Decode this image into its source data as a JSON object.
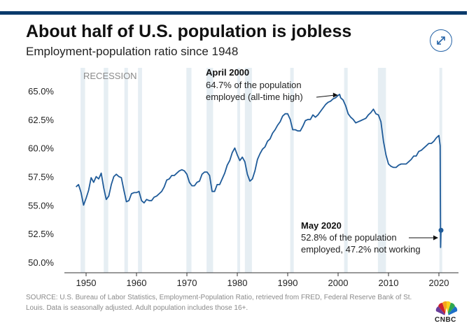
{
  "title": "About half of U.S. population is jobless",
  "subtitle": "Employment-population ratio since 1948",
  "source": "SOURCE: U.S. Bureau of Labor Statistics, Employment-Population Ratio, retrieved from FRED, Federal Reserve Bank of St. Louis. Data is seasonally adjusted. Adult population includes those 16+.",
  "logo": {
    "text": "CNBC",
    "icon": "peacock-icon"
  },
  "expand": {
    "icon": "expand-arrows-icon"
  },
  "colors": {
    "line": "#1f5b99",
    "topbar": "#0b3a6b",
    "recession": "#e6eef3",
    "text": "#222222"
  },
  "chart_data": {
    "type": "line",
    "title": "Employment-population ratio since 1948",
    "xlabel": "",
    "ylabel": "",
    "xlim": [
      1946,
      2023
    ],
    "ylim": [
      50,
      65.5
    ],
    "x_ticks": [
      1950,
      1960,
      1970,
      1980,
      1990,
      2000,
      2010,
      2020
    ],
    "x_tick_labels": [
      "1950",
      "1960",
      "1970",
      "1980",
      "1990",
      "2000",
      "2010",
      "2020"
    ],
    "y_ticks": [
      50,
      52.5,
      55,
      57.5,
      60,
      62.5,
      65
    ],
    "y_tick_labels": [
      "50.0%",
      "52.5%",
      "55.0%",
      "57.5%",
      "60.0%",
      "62.5%",
      "65.0%"
    ],
    "grid": false,
    "recession_label": "RECESSION",
    "recessions": [
      [
        1948.9,
        1949.8
      ],
      [
        1953.5,
        1954.4
      ],
      [
        1957.6,
        1958.3
      ],
      [
        1960.3,
        1961.1
      ],
      [
        1969.9,
        1970.9
      ],
      [
        1973.9,
        1975.2
      ],
      [
        1980.0,
        1980.5
      ],
      [
        1981.5,
        1982.9
      ],
      [
        1990.5,
        1991.2
      ],
      [
        2001.2,
        2001.9
      ],
      [
        2007.9,
        2009.5
      ],
      [
        2020.1,
        2020.4
      ]
    ],
    "series": [
      {
        "name": "Employment-population ratio",
        "x": [
          1948.0,
          1948.5,
          1949.0,
          1949.5,
          1950.0,
          1950.5,
          1951.0,
          1951.5,
          1952.0,
          1952.5,
          1953.0,
          1953.5,
          1954.0,
          1954.5,
          1955.0,
          1955.5,
          1956.0,
          1956.5,
          1957.0,
          1957.5,
          1958.0,
          1958.5,
          1959.0,
          1959.5,
          1960.0,
          1960.5,
          1961.0,
          1961.5,
          1962.0,
          1962.5,
          1963.0,
          1963.5,
          1964.0,
          1964.5,
          1965.0,
          1965.5,
          1966.0,
          1966.5,
          1967.0,
          1967.5,
          1968.0,
          1968.5,
          1969.0,
          1969.5,
          1970.0,
          1970.5,
          1971.0,
          1971.5,
          1972.0,
          1972.5,
          1973.0,
          1973.5,
          1974.0,
          1974.5,
          1975.0,
          1975.5,
          1976.0,
          1976.5,
          1977.0,
          1977.5,
          1978.0,
          1978.5,
          1979.0,
          1979.5,
          1980.0,
          1980.5,
          1981.0,
          1981.5,
          1982.0,
          1982.5,
          1983.0,
          1983.5,
          1984.0,
          1984.5,
          1985.0,
          1985.5,
          1986.0,
          1986.5,
          1987.0,
          1987.5,
          1988.0,
          1988.5,
          1989.0,
          1989.5,
          1990.0,
          1990.5,
          1991.0,
          1991.5,
          1992.0,
          1992.5,
          1993.0,
          1993.5,
          1994.0,
          1994.5,
          1995.0,
          1995.5,
          1996.0,
          1996.5,
          1997.0,
          1997.5,
          1998.0,
          1998.5,
          1999.0,
          1999.5,
          2000.0,
          2000.3,
          2000.5,
          2001.0,
          2001.5,
          2002.0,
          2002.5,
          2003.0,
          2003.5,
          2004.0,
          2004.5,
          2005.0,
          2005.5,
          2006.0,
          2006.5,
          2007.0,
          2007.5,
          2008.0,
          2008.5,
          2009.0,
          2009.5,
          2010.0,
          2010.5,
          2011.0,
          2011.5,
          2012.0,
          2012.5,
          2013.0,
          2013.5,
          2014.0,
          2014.5,
          2015.0,
          2015.5,
          2016.0,
          2016.5,
          2017.0,
          2017.5,
          2018.0,
          2018.5,
          2019.0,
          2019.5,
          2020.0,
          2020.25,
          2020.33,
          2020.42
        ],
        "values": [
          56.6,
          56.8,
          56.1,
          55.0,
          55.6,
          56.3,
          57.4,
          57.0,
          57.5,
          57.3,
          57.8,
          56.5,
          55.5,
          55.8,
          56.8,
          57.5,
          57.7,
          57.5,
          57.4,
          56.3,
          55.3,
          55.4,
          56.0,
          56.1,
          56.1,
          56.2,
          55.4,
          55.2,
          55.5,
          55.4,
          55.4,
          55.7,
          55.8,
          56.0,
          56.2,
          56.6,
          57.2,
          57.3,
          57.6,
          57.6,
          57.8,
          58.0,
          58.1,
          58.0,
          57.7,
          57.0,
          56.7,
          56.7,
          57.0,
          57.1,
          57.7,
          57.9,
          57.9,
          57.6,
          56.2,
          56.2,
          56.8,
          56.8,
          57.3,
          57.8,
          58.5,
          58.9,
          59.6,
          60.0,
          59.4,
          58.9,
          59.2,
          58.8,
          57.7,
          57.1,
          57.3,
          58.0,
          59.0,
          59.5,
          59.9,
          60.1,
          60.6,
          60.8,
          61.3,
          61.6,
          62.0,
          62.3,
          62.8,
          63.0,
          63.0,
          62.5,
          61.6,
          61.6,
          61.5,
          61.5,
          61.9,
          62.4,
          62.5,
          62.5,
          62.9,
          62.7,
          62.9,
          63.2,
          63.5,
          63.8,
          64.0,
          64.1,
          64.3,
          64.4,
          64.6,
          64.7,
          64.4,
          64.2,
          63.7,
          63.0,
          62.7,
          62.5,
          62.2,
          62.3,
          62.4,
          62.5,
          62.6,
          62.9,
          63.1,
          63.4,
          63.0,
          62.9,
          62.3,
          60.6,
          59.4,
          58.6,
          58.4,
          58.3,
          58.3,
          58.5,
          58.6,
          58.6,
          58.6,
          58.8,
          59.0,
          59.3,
          59.3,
          59.7,
          59.8,
          60.0,
          60.2,
          60.4,
          60.4,
          60.6,
          60.9,
          61.1,
          60.2,
          51.3,
          52.8
        ]
      }
    ],
    "annotations": [
      {
        "id": "peak",
        "title": "April 2000",
        "lines": [
          "64.7% of the population",
          "employed (all-time high)"
        ],
        "x": 2000.25,
        "y": 64.7
      },
      {
        "id": "may2020",
        "title": "May 2020",
        "lines": [
          "52.8% of the population",
          "employed, 47.2% not working"
        ],
        "x": 2020.42,
        "y": 52.8
      }
    ]
  }
}
